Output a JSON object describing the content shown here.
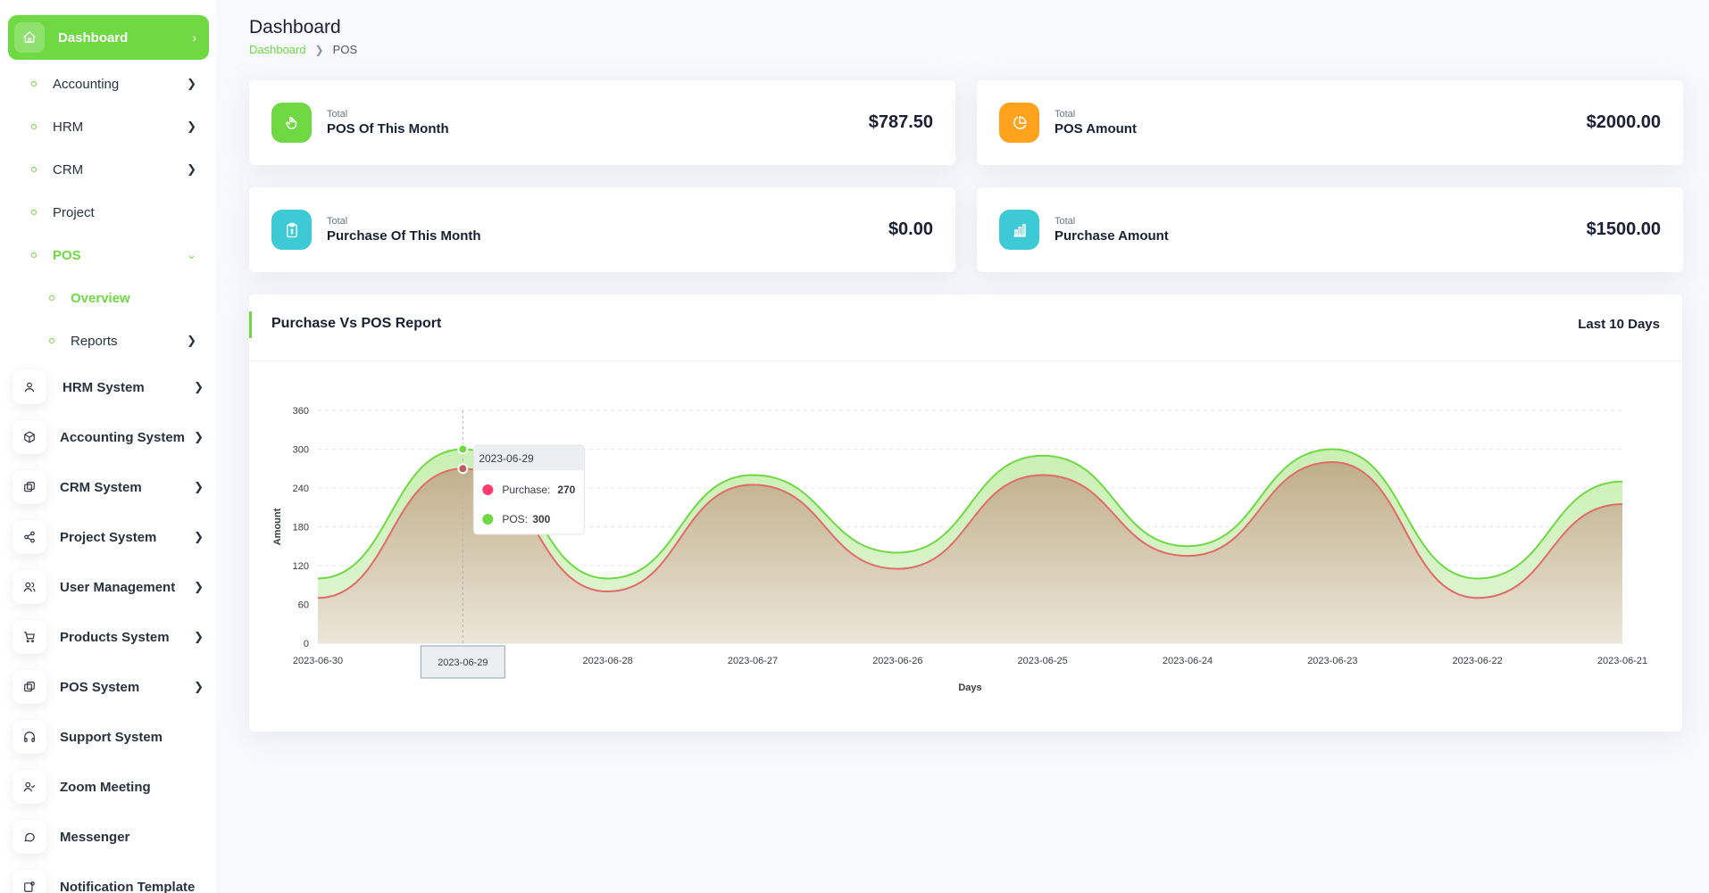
{
  "sidebar": {
    "dashboard_label": "Dashboard",
    "sub_items": [
      {
        "label": "Accounting",
        "has_chevron": true
      },
      {
        "label": "HRM",
        "has_chevron": true
      },
      {
        "label": "CRM",
        "has_chevron": true
      },
      {
        "label": "Project",
        "has_chevron": false
      },
      {
        "label": "POS",
        "expanded": true
      },
      {
        "label": "Overview",
        "active": true
      },
      {
        "label": "Reports",
        "has_chevron": true
      }
    ],
    "systems": [
      {
        "label": "HRM System",
        "icon": "user-icon"
      },
      {
        "label": "Accounting System",
        "icon": "box-icon"
      },
      {
        "label": "CRM System",
        "icon": "layers-icon"
      },
      {
        "label": "Project System",
        "icon": "share-icon"
      },
      {
        "label": "User Management",
        "icon": "users-icon"
      },
      {
        "label": "Products System",
        "icon": "cart-icon"
      },
      {
        "label": "POS System",
        "icon": "layers-icon"
      },
      {
        "label": "Support System",
        "icon": "headphones-icon"
      },
      {
        "label": "Zoom Meeting",
        "icon": "user-check-icon"
      },
      {
        "label": "Messenger",
        "icon": "message-icon"
      },
      {
        "label": "Notification Template",
        "icon": "notification-icon"
      }
    ]
  },
  "header": {
    "title": "Dashboard",
    "breadcrumb": [
      "Dashboard",
      "POS"
    ]
  },
  "stats": [
    {
      "small": "Total",
      "label": "POS Of This Month",
      "value": "$787.50",
      "color": "#6fd943",
      "icon": "hand-icon"
    },
    {
      "small": "Total",
      "label": "POS Amount",
      "value": "$2000.00",
      "color": "#ffa21d",
      "icon": "pie-chart-icon"
    },
    {
      "small": "Total",
      "label": "Purchase Of This Month",
      "value": "$0.00",
      "color": "#3ec9d6",
      "icon": "clipboard-icon"
    },
    {
      "small": "Total",
      "label": "Purchase Amount",
      "value": "$1500.00",
      "color": "#3ec9d6",
      "icon": "bar-chart-icon"
    }
  ],
  "report": {
    "title": "Purchase Vs POS Report",
    "range": "Last 10 Days"
  },
  "chart_data": {
    "type": "area",
    "x": [
      "2023-06-30",
      "2023-06-29",
      "2023-06-28",
      "2023-06-27",
      "2023-06-26",
      "2023-06-25",
      "2023-06-24",
      "2023-06-23",
      "2023-06-22",
      "2023-06-21"
    ],
    "series": [
      {
        "name": "Purchase",
        "values": [
          70,
          270,
          80,
          245,
          115,
          260,
          135,
          280,
          70,
          215
        ],
        "color": "#e26a6a",
        "tooltip_color": "#ff3a6e"
      },
      {
        "name": "POS",
        "values": [
          100,
          300,
          100,
          260,
          140,
          290,
          150,
          300,
          100,
          250
        ],
        "color": "#6fd943"
      }
    ],
    "xlabel": "Days",
    "ylabel": "Amount",
    "ylim": [
      0,
      360
    ],
    "yticks": [
      0,
      60,
      120,
      180,
      240,
      300,
      360
    ],
    "grid": true,
    "tooltip": {
      "date": "2023-06-29",
      "purchase_label": "Purchase:",
      "purchase_value": "270",
      "pos_label": "POS:",
      "pos_value": "300"
    }
  }
}
